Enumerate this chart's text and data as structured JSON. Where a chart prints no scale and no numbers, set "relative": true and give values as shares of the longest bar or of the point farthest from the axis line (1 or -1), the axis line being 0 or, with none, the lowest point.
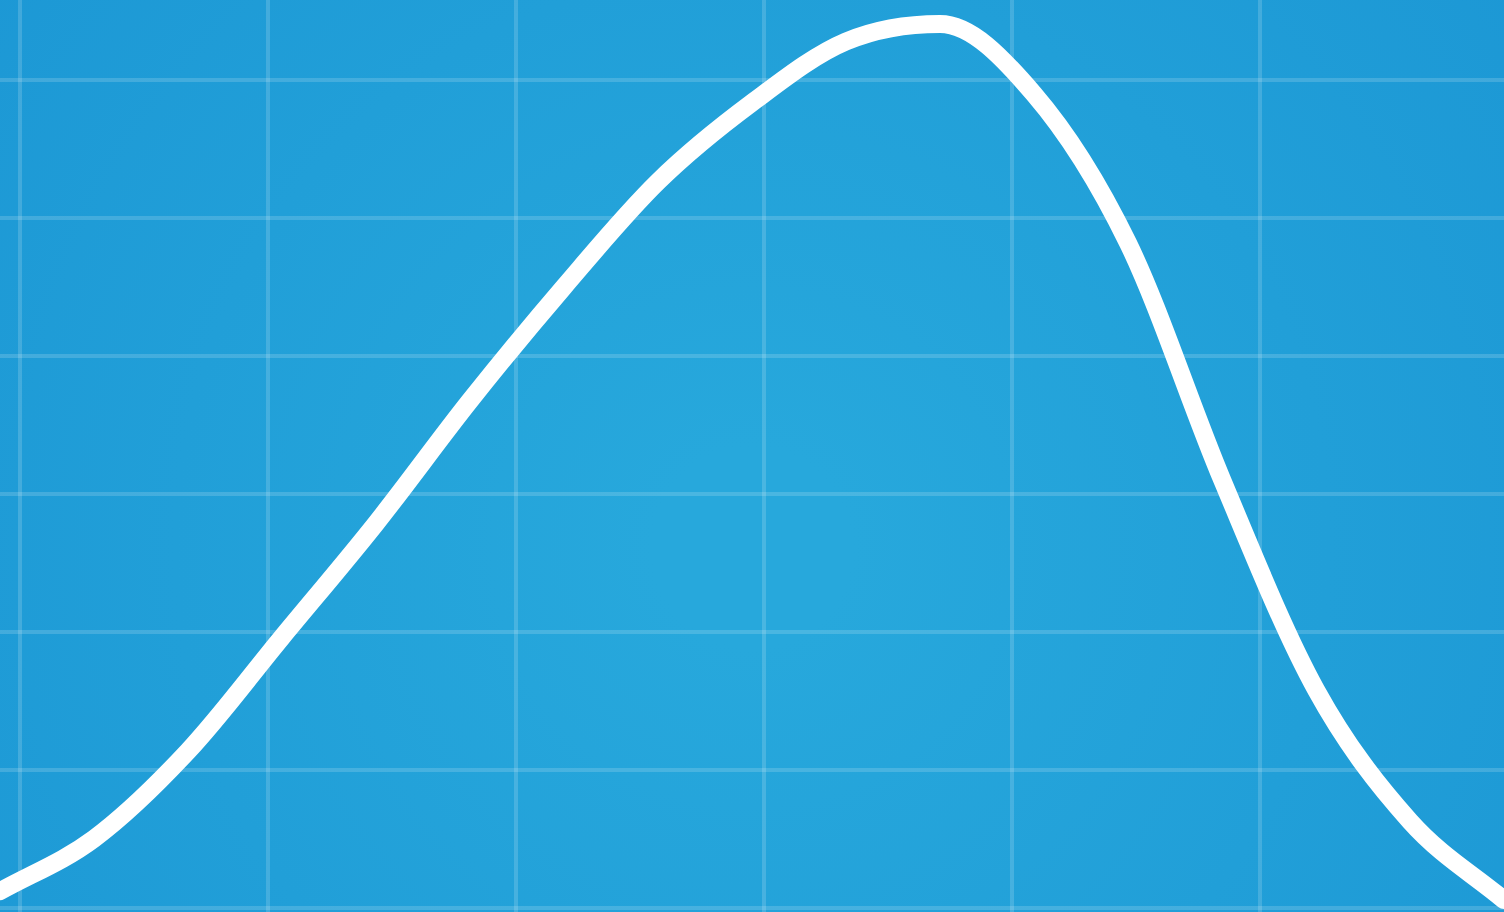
{
  "chart_data": {
    "type": "line",
    "relative": true,
    "grid": true,
    "legend": false,
    "marker": "none",
    "line_style": "solid",
    "categories": [
      null,
      null,
      null,
      null,
      null,
      null,
      null,
      null,
      null,
      null,
      null,
      null,
      null,
      null,
      null,
      null,
      null
    ],
    "series": [
      {
        "color": "#ffffff",
        "values": [
          0.01,
          0.07,
          0.17,
          0.3,
          0.43,
          0.57,
          0.7,
          0.82,
          0.91,
          0.98,
          1.0,
          0.92,
          0.75,
          0.48,
          0.24,
          0.09,
          0
        ]
      }
    ]
  }
}
